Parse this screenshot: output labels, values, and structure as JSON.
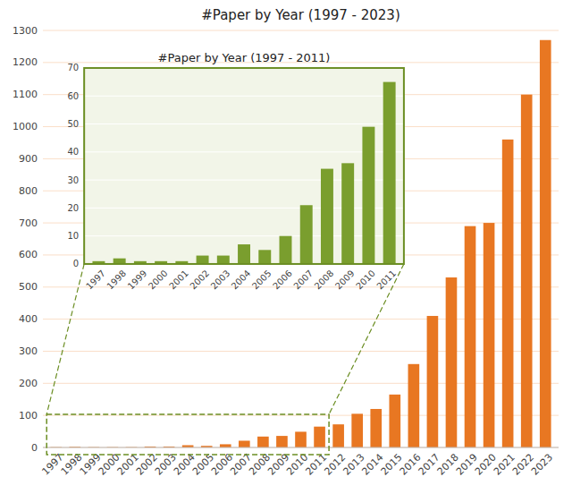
{
  "chart_data": [
    {
      "type": "bar",
      "title": "#Paper by Year (1997 - 2023)",
      "categories": [
        "1997",
        "1998",
        "1999",
        "2000",
        "2001",
        "2002",
        "2003",
        "2004",
        "2005",
        "2006",
        "2007",
        "2008",
        "2009",
        "2010",
        "2011",
        "2012",
        "2013",
        "2014",
        "2015",
        "2016",
        "2017",
        "2018",
        "2019",
        "2020",
        "2021",
        "2022",
        "2023"
      ],
      "values": [
        1,
        2,
        1,
        1,
        1,
        3,
        3,
        7,
        5,
        10,
        21,
        34,
        36,
        49,
        65,
        72,
        105,
        120,
        165,
        260,
        410,
        530,
        690,
        700,
        960,
        1100,
        1270
      ],
      "color": "#E87722",
      "ylim": [
        0,
        1300
      ],
      "yticks": [
        0,
        100,
        200,
        300,
        400,
        500,
        600,
        700,
        800,
        900,
        1000,
        1100,
        1200,
        1300
      ],
      "grid": true
    },
    {
      "type": "bar",
      "title": "#Paper by Year (1997 - 2011)",
      "categories": [
        "1997",
        "1998",
        "1999",
        "2000",
        "2001",
        "2002",
        "2003",
        "2004",
        "2005",
        "2006",
        "2007",
        "2008",
        "2009",
        "2010",
        "2011"
      ],
      "values": [
        1,
        2,
        1,
        1,
        1,
        3,
        3,
        7,
        5,
        10,
        21,
        34,
        36,
        49,
        65
      ],
      "color": "#7A9E2E",
      "ylim": [
        0,
        70
      ],
      "yticks": [
        0,
        10,
        20,
        30,
        40,
        50,
        60,
        70
      ],
      "grid": true
    }
  ]
}
